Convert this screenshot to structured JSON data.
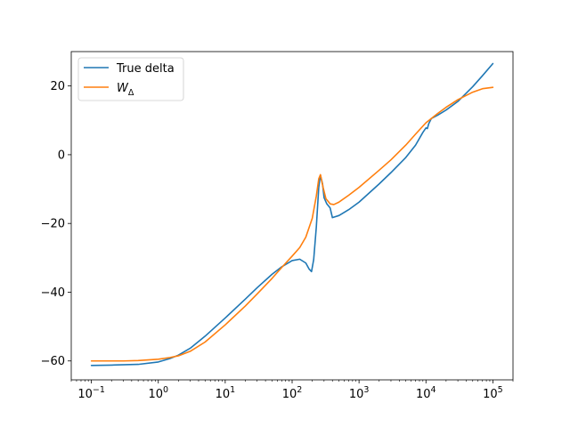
{
  "chart_data": {
    "type": "line",
    "title": "",
    "xlabel": "",
    "ylabel": "",
    "xscale": "log",
    "xlim": [
      0.05,
      200000
    ],
    "ylim": [
      -65.5,
      30
    ],
    "grid": false,
    "legend_position": "top-left",
    "x_ticks": [
      {
        "value": 0.1,
        "base": "10",
        "exp": "−1"
      },
      {
        "value": 1,
        "base": "10",
        "exp": "0"
      },
      {
        "value": 10,
        "base": "10",
        "exp": "1"
      },
      {
        "value": 100,
        "base": "10",
        "exp": "2"
      },
      {
        "value": 1000,
        "base": "10",
        "exp": "3"
      },
      {
        "value": 10000,
        "base": "10",
        "exp": "4"
      },
      {
        "value": 100000,
        "base": "10",
        "exp": "5"
      }
    ],
    "y_ticks": [
      {
        "value": -60,
        "label": "−60"
      },
      {
        "value": -40,
        "label": "−40"
      },
      {
        "value": -20,
        "label": "−20"
      },
      {
        "value": 0,
        "label": "0"
      },
      {
        "value": 20,
        "label": "20"
      }
    ],
    "series": [
      {
        "name": "True delta",
        "color": "#1f77b4",
        "points": [
          [
            0.1,
            -61.3
          ],
          [
            0.2,
            -61.2
          ],
          [
            0.5,
            -61.0
          ],
          [
            1,
            -60.3
          ],
          [
            1.5,
            -59.3
          ],
          [
            2,
            -58.3
          ],
          [
            3,
            -56.3
          ],
          [
            5,
            -52.8
          ],
          [
            10,
            -47.5
          ],
          [
            20,
            -42.0
          ],
          [
            30,
            -38.7
          ],
          [
            50,
            -34.8
          ],
          [
            70,
            -32.6
          ],
          [
            100,
            -30.8
          ],
          [
            130,
            -30.4
          ],
          [
            160,
            -31.5
          ],
          [
            180,
            -33.3
          ],
          [
            195,
            -34.0
          ],
          [
            210,
            -30.5
          ],
          [
            230,
            -21.0
          ],
          [
            250,
            -9.5
          ],
          [
            265,
            -6.0
          ],
          [
            285,
            -8.5
          ],
          [
            300,
            -12.5
          ],
          [
            330,
            -14.3
          ],
          [
            370,
            -15.5
          ],
          [
            400,
            -18.3
          ],
          [
            500,
            -17.7
          ],
          [
            700,
            -16.0
          ],
          [
            1000,
            -13.8
          ],
          [
            2000,
            -8.5
          ],
          [
            3000,
            -5.2
          ],
          [
            5000,
            -0.8
          ],
          [
            7000,
            2.8
          ],
          [
            9000,
            6.5
          ],
          [
            10000,
            7.8
          ],
          [
            10500,
            7.6
          ],
          [
            11000,
            9.0
          ],
          [
            12000,
            10.5
          ],
          [
            15000,
            11.5
          ],
          [
            20000,
            13.0
          ],
          [
            30000,
            15.5
          ],
          [
            50000,
            19.8
          ],
          [
            70000,
            23.0
          ],
          [
            100000,
            26.5
          ]
        ]
      },
      {
        "name": "W_Δ",
        "label_base": "W",
        "label_sub": "Δ",
        "color": "#ff7f0e",
        "points": [
          [
            0.1,
            -60.0
          ],
          [
            0.3,
            -60.0
          ],
          [
            0.5,
            -59.9
          ],
          [
            1,
            -59.5
          ],
          [
            1.5,
            -59.0
          ],
          [
            2,
            -58.5
          ],
          [
            3,
            -57.2
          ],
          [
            5,
            -54.5
          ],
          [
            10,
            -49.5
          ],
          [
            20,
            -44.0
          ],
          [
            30,
            -40.5
          ],
          [
            50,
            -36.0
          ],
          [
            70,
            -32.8
          ],
          [
            100,
            -29.5
          ],
          [
            130,
            -27.0
          ],
          [
            160,
            -24.0
          ],
          [
            200,
            -18.5
          ],
          [
            230,
            -12.0
          ],
          [
            250,
            -7.0
          ],
          [
            265,
            -5.8
          ],
          [
            290,
            -9.5
          ],
          [
            320,
            -12.8
          ],
          [
            370,
            -14.3
          ],
          [
            420,
            -14.5
          ],
          [
            500,
            -13.8
          ],
          [
            700,
            -11.8
          ],
          [
            1000,
            -9.5
          ],
          [
            2000,
            -4.5
          ],
          [
            3000,
            -1.5
          ],
          [
            5000,
            2.8
          ],
          [
            7000,
            6.0
          ],
          [
            10000,
            9.3
          ],
          [
            15000,
            12.0
          ],
          [
            20000,
            13.8
          ],
          [
            30000,
            16.0
          ],
          [
            50000,
            18.2
          ],
          [
            70000,
            19.2
          ],
          [
            100000,
            19.6
          ]
        ]
      }
    ]
  }
}
